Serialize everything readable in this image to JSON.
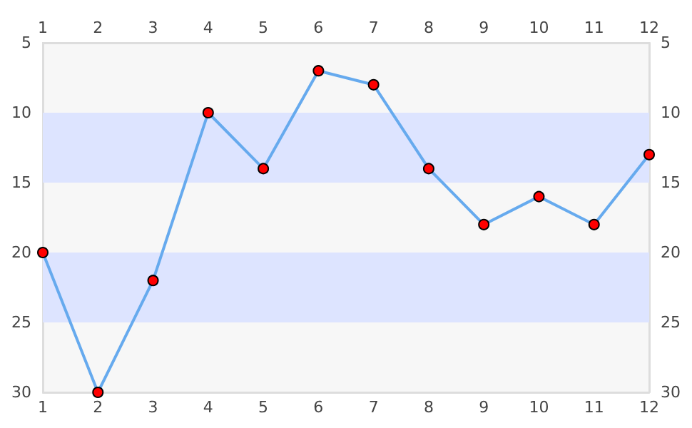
{
  "chart_data": {
    "type": "line",
    "x": [
      1,
      2,
      3,
      4,
      5,
      6,
      7,
      8,
      9,
      10,
      11,
      12
    ],
    "series": [
      {
        "color": "#66aaee",
        "colors": [
          "#ff0000",
          "#ff0000",
          "#ff0000",
          "#ff0000",
          "#ff0000",
          "#ff0000",
          "#ff0000",
          "#ff0000",
          "#ff0000",
          "#ff0000",
          "#ff0000",
          "#ff0000"
        ],
        "values": [
          20,
          30,
          22,
          10,
          14,
          7,
          8,
          14,
          18,
          16,
          18,
          13
        ]
      }
    ],
    "xlim": [
      1,
      12
    ],
    "xticks": [
      1,
      2,
      3,
      4,
      5,
      6,
      7,
      8,
      9,
      10,
      11,
      12
    ],
    "x2lim": [
      1,
      12
    ],
    "x2ticks": [
      1,
      2,
      3,
      4,
      5,
      6,
      7,
      8,
      9,
      10,
      11,
      12
    ],
    "ylim": [
      30,
      5
    ],
    "yticks": [
      5,
      10,
      15,
      20,
      25,
      30
    ],
    "y2lim": [
      30,
      5
    ],
    "y2ticks": [
      5,
      10,
      15,
      20,
      25,
      30
    ],
    "bands": [
      {
        "axis": "y",
        "from": 10,
        "to": 15,
        "color": "#dde4ff"
      },
      {
        "axis": "y",
        "from": 20,
        "to": 25,
        "color": "#dde4ff"
      }
    ],
    "marker": "circle",
    "line_style": "solid",
    "grid": false
  }
}
